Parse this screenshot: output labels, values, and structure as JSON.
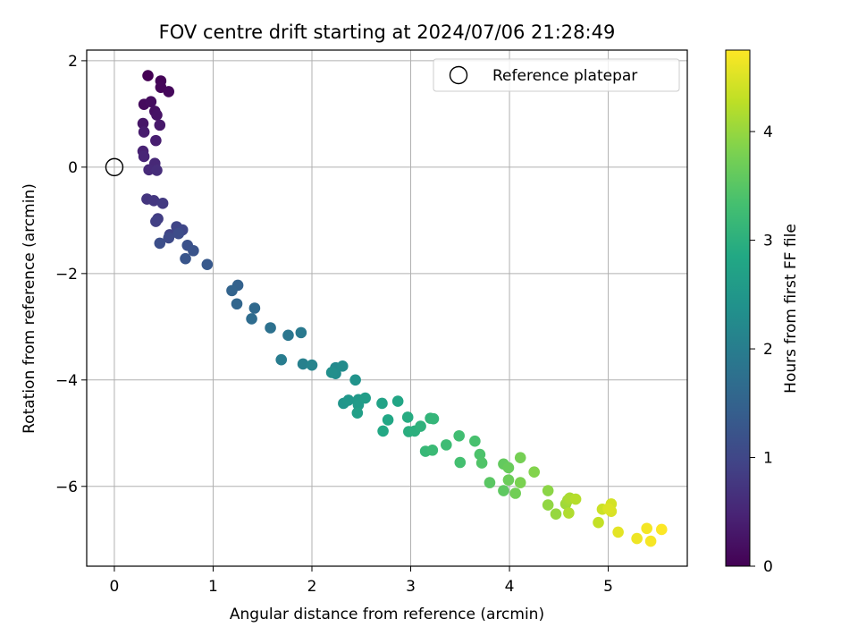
{
  "chart_data": {
    "type": "scatter",
    "title": "FOV centre drift starting at 2024/07/06 21:28:49",
    "xlabel": "Angular distance from reference (arcmin)",
    "ylabel": "Rotation from reference (arcmin)",
    "xlim": [
      -0.28,
      5.8
    ],
    "ylim": [
      -7.5,
      2.2
    ],
    "xticks": [
      0,
      1,
      2,
      3,
      4,
      5
    ],
    "yticks": [
      -6,
      -4,
      -2,
      0,
      2
    ],
    "grid": true,
    "legend": {
      "placement": "top-right",
      "entries": [
        "Reference platepar"
      ]
    },
    "reference_point": {
      "x": 0,
      "y": 0,
      "label": "Reference platepar"
    },
    "colorbar": {
      "label": "Hours from first FF file",
      "colormap": "viridis",
      "range": [
        0,
        4.75
      ],
      "ticks": [
        0,
        1,
        2,
        3,
        4
      ]
    },
    "points": [
      {
        "x": 0.34,
        "y": 1.72,
        "c": 0.0
      },
      {
        "x": 0.47,
        "y": 1.62,
        "c": 0.04
      },
      {
        "x": 0.47,
        "y": 1.5,
        "c": 0.07
      },
      {
        "x": 0.55,
        "y": 1.42,
        "c": 0.1
      },
      {
        "x": 0.3,
        "y": 1.18,
        "c": 0.13
      },
      {
        "x": 0.37,
        "y": 1.23,
        "c": 0.16
      },
      {
        "x": 0.41,
        "y": 1.05,
        "c": 0.2
      },
      {
        "x": 0.43,
        "y": 0.98,
        "c": 0.24
      },
      {
        "x": 0.29,
        "y": 0.82,
        "c": 0.28
      },
      {
        "x": 0.46,
        "y": 0.79,
        "c": 0.32
      },
      {
        "x": 0.3,
        "y": 0.66,
        "c": 0.36
      },
      {
        "x": 0.42,
        "y": 0.5,
        "c": 0.4
      },
      {
        "x": 0.29,
        "y": 0.3,
        "c": 0.45
      },
      {
        "x": 0.3,
        "y": 0.2,
        "c": 0.49
      },
      {
        "x": 0.41,
        "y": 0.07,
        "c": 0.53
      },
      {
        "x": 0.35,
        "y": -0.05,
        "c": 0.57
      },
      {
        "x": 0.43,
        "y": -0.06,
        "c": 0.61
      },
      {
        "x": 0.33,
        "y": -0.6,
        "c": 0.72
      },
      {
        "x": 0.4,
        "y": -0.63,
        "c": 0.76
      },
      {
        "x": 0.49,
        "y": -0.68,
        "c": 0.8
      },
      {
        "x": 0.44,
        "y": -0.97,
        "c": 0.85
      },
      {
        "x": 0.42,
        "y": -1.02,
        "c": 0.89
      },
      {
        "x": 0.56,
        "y": -1.27,
        "c": 0.93
      },
      {
        "x": 0.63,
        "y": -1.12,
        "c": 0.97
      },
      {
        "x": 0.69,
        "y": -1.18,
        "c": 1.01
      },
      {
        "x": 0.55,
        "y": -1.33,
        "c": 1.05
      },
      {
        "x": 0.65,
        "y": -1.25,
        "c": 1.09
      },
      {
        "x": 0.46,
        "y": -1.43,
        "c": 1.13
      },
      {
        "x": 0.74,
        "y": -1.47,
        "c": 1.17
      },
      {
        "x": 0.8,
        "y": -1.57,
        "c": 1.21
      },
      {
        "x": 0.72,
        "y": -1.72,
        "c": 1.25
      },
      {
        "x": 0.94,
        "y": -1.83,
        "c": 1.32
      },
      {
        "x": 1.25,
        "y": -2.22,
        "c": 1.48
      },
      {
        "x": 1.19,
        "y": -2.32,
        "c": 1.52
      },
      {
        "x": 1.24,
        "y": -2.57,
        "c": 1.56
      },
      {
        "x": 1.42,
        "y": -2.65,
        "c": 1.62
      },
      {
        "x": 1.39,
        "y": -2.85,
        "c": 1.68
      },
      {
        "x": 1.58,
        "y": -3.02,
        "c": 1.76
      },
      {
        "x": 1.76,
        "y": -3.16,
        "c": 1.86
      },
      {
        "x": 1.89,
        "y": -3.11,
        "c": 1.92
      },
      {
        "x": 1.69,
        "y": -3.62,
        "c": 1.98
      },
      {
        "x": 1.91,
        "y": -3.7,
        "c": 2.06
      },
      {
        "x": 2.0,
        "y": -3.72,
        "c": 2.12
      },
      {
        "x": 2.24,
        "y": -3.77,
        "c": 2.22
      },
      {
        "x": 2.31,
        "y": -3.74,
        "c": 2.28
      },
      {
        "x": 2.24,
        "y": -3.88,
        "c": 2.3
      },
      {
        "x": 2.2,
        "y": -3.86,
        "c": 2.33
      },
      {
        "x": 2.44,
        "y": -4.0,
        "c": 2.42
      },
      {
        "x": 2.32,
        "y": -4.44,
        "c": 2.46
      },
      {
        "x": 2.37,
        "y": -4.38,
        "c": 2.5
      },
      {
        "x": 2.47,
        "y": -4.37,
        "c": 2.55
      },
      {
        "x": 2.47,
        "y": -4.47,
        "c": 2.58
      },
      {
        "x": 2.54,
        "y": -4.34,
        "c": 2.62
      },
      {
        "x": 2.46,
        "y": -4.62,
        "c": 2.66
      },
      {
        "x": 2.71,
        "y": -4.44,
        "c": 2.72
      },
      {
        "x": 2.87,
        "y": -4.4,
        "c": 2.78
      },
      {
        "x": 2.77,
        "y": -4.75,
        "c": 2.82
      },
      {
        "x": 2.72,
        "y": -4.96,
        "c": 2.86
      },
      {
        "x": 2.97,
        "y": -4.7,
        "c": 2.92
      },
      {
        "x": 2.98,
        "y": -4.97,
        "c": 2.96
      },
      {
        "x": 3.04,
        "y": -4.96,
        "c": 3.0
      },
      {
        "x": 3.1,
        "y": -4.87,
        "c": 3.04
      },
      {
        "x": 3.2,
        "y": -4.72,
        "c": 3.08
      },
      {
        "x": 3.23,
        "y": -4.73,
        "c": 3.12
      },
      {
        "x": 3.15,
        "y": -5.34,
        "c": 3.16
      },
      {
        "x": 3.22,
        "y": -5.32,
        "c": 3.2
      },
      {
        "x": 3.36,
        "y": -5.22,
        "c": 3.24
      },
      {
        "x": 3.49,
        "y": -5.05,
        "c": 3.28
      },
      {
        "x": 3.5,
        "y": -5.55,
        "c": 3.32
      },
      {
        "x": 3.65,
        "y": -5.15,
        "c": 3.36
      },
      {
        "x": 3.7,
        "y": -5.4,
        "c": 3.4
      },
      {
        "x": 3.72,
        "y": -5.56,
        "c": 3.44
      },
      {
        "x": 3.8,
        "y": -5.93,
        "c": 3.52
      },
      {
        "x": 3.94,
        "y": -6.08,
        "c": 3.56
      },
      {
        "x": 3.94,
        "y": -5.58,
        "c": 3.6
      },
      {
        "x": 3.99,
        "y": -5.65,
        "c": 3.64
      },
      {
        "x": 3.99,
        "y": -5.88,
        "c": 3.68
      },
      {
        "x": 4.06,
        "y": -6.13,
        "c": 3.72
      },
      {
        "x": 4.11,
        "y": -5.46,
        "c": 3.76
      },
      {
        "x": 4.11,
        "y": -5.93,
        "c": 3.8
      },
      {
        "x": 4.25,
        "y": -5.73,
        "c": 3.86
      },
      {
        "x": 4.39,
        "y": -6.08,
        "c": 3.92
      },
      {
        "x": 4.39,
        "y": -6.35,
        "c": 3.96
      },
      {
        "x": 4.47,
        "y": -6.52,
        "c": 4.0
      },
      {
        "x": 4.57,
        "y": -6.33,
        "c": 4.06
      },
      {
        "x": 4.59,
        "y": -6.26,
        "c": 4.1
      },
      {
        "x": 4.61,
        "y": -6.22,
        "c": 4.14
      },
      {
        "x": 4.6,
        "y": -6.5,
        "c": 4.18
      },
      {
        "x": 4.67,
        "y": -6.24,
        "c": 4.22
      },
      {
        "x": 4.9,
        "y": -6.68,
        "c": 4.32
      },
      {
        "x": 4.94,
        "y": -6.43,
        "c": 4.38
      },
      {
        "x": 5.03,
        "y": -6.33,
        "c": 4.44
      },
      {
        "x": 5.03,
        "y": -6.47,
        "c": 4.48
      },
      {
        "x": 5.0,
        "y": -6.42,
        "c": 4.5
      },
      {
        "x": 5.1,
        "y": -6.86,
        "c": 4.56
      },
      {
        "x": 5.29,
        "y": -6.98,
        "c": 4.64
      },
      {
        "x": 5.39,
        "y": -6.79,
        "c": 4.68
      },
      {
        "x": 5.43,
        "y": -7.03,
        "c": 4.7
      },
      {
        "x": 5.54,
        "y": -6.81,
        "c": 4.74
      }
    ]
  }
}
